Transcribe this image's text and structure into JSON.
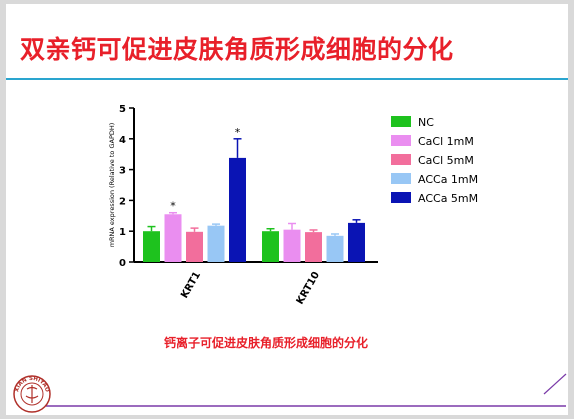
{
  "slide": {
    "title": "双亲钙可促进皮肤角质形成细胞的分化",
    "caption": "钙离子可促进皮肤角质形成细胞的分化",
    "accent_color": "#e8202a",
    "rule_color": "#2aa5cf",
    "seal_text": "XIAN SHIYAO",
    "seal_icon": "university-seal-icon"
  },
  "chart_data": {
    "type": "bar",
    "ylabel": "mRNA expression (Relative to GAPDH)",
    "ylim": [
      0,
      5
    ],
    "yticks": [
      0,
      1,
      2,
      3,
      4,
      5
    ],
    "categories": [
      "KRT1",
      "KRT10"
    ],
    "grid": false,
    "legend_placement": "right",
    "series": [
      {
        "name": "NC",
        "color": "#1ec21e",
        "values": [
          1.0,
          1.0
        ],
        "errors": [
          0.15,
          0.08
        ],
        "significant": [
          false,
          false
        ]
      },
      {
        "name": "CaCl 1mM",
        "color": "#ea8ef0",
        "values": [
          1.55,
          1.05
        ],
        "errors": [
          0.05,
          0.2
        ],
        "significant": [
          true,
          false
        ]
      },
      {
        "name": "CaCl 5mM",
        "color": "#f26e9c",
        "values": [
          0.98,
          0.97
        ],
        "errors": [
          0.12,
          0.07
        ],
        "significant": [
          false,
          false
        ]
      },
      {
        "name": "ACCa 1mM",
        "color": "#98c7f5",
        "values": [
          1.18,
          0.85
        ],
        "errors": [
          0.05,
          0.06
        ],
        "significant": [
          false,
          false
        ]
      },
      {
        "name": "ACCa 5mM",
        "color": "#0a14b4",
        "values": [
          3.38,
          1.27
        ],
        "errors": [
          0.62,
          0.1
        ],
        "significant": [
          true,
          false
        ]
      }
    ],
    "significance_marker": "*"
  }
}
